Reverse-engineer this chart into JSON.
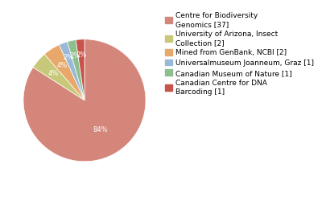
{
  "labels": [
    "Centre for Biodiversity\nGenomics [37]",
    "University of Arizona, Insect\nCollection [2]",
    "Mined from GenBank, NCBI [2]",
    "Universalmuseum Joanneum, Graz [1]",
    "Canadian Museum of Nature [1]",
    "Canadian Centre for DNA\nBarcoding [1]"
  ],
  "values": [
    37,
    2,
    2,
    1,
    1,
    1
  ],
  "colors": [
    "#d4867a",
    "#c8c87a",
    "#e8a86a",
    "#9ab8d8",
    "#8ec08e",
    "#c8534a"
  ],
  "pct_labels": [
    "84%",
    "4%",
    "4%",
    "2%",
    "2%",
    "2%"
  ],
  "show_pct": [
    true,
    true,
    true,
    true,
    true,
    true
  ],
  "background_color": "#ffffff",
  "text_color": "#ffffff",
  "fontsize_pct": 6,
  "fontsize_legend": 6.5
}
